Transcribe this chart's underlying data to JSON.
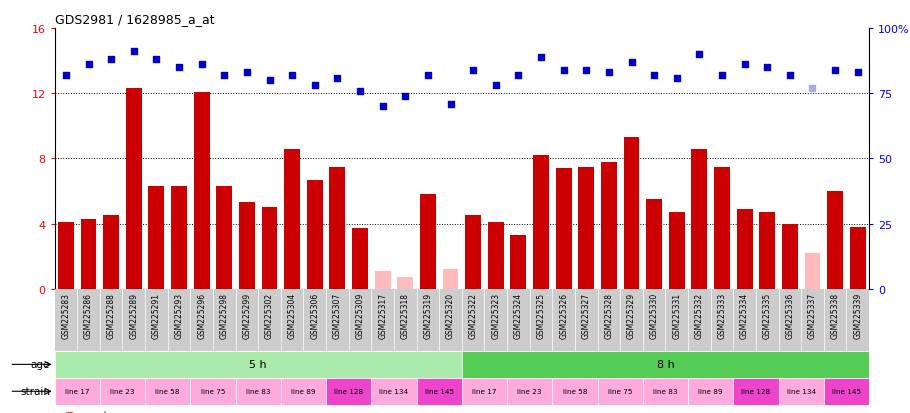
{
  "title": "GDS2981 / 1628985_a_at",
  "samples": [
    "GSM225283",
    "GSM225286",
    "GSM225288",
    "GSM225289",
    "GSM225291",
    "GSM225293",
    "GSM225296",
    "GSM225298",
    "GSM225299",
    "GSM225302",
    "GSM225304",
    "GSM225306",
    "GSM225307",
    "GSM225309",
    "GSM225317",
    "GSM225318",
    "GSM225319",
    "GSM225320",
    "GSM225322",
    "GSM225323",
    "GSM225324",
    "GSM225325",
    "GSM225326",
    "GSM225327",
    "GSM225328",
    "GSM225329",
    "GSM225330",
    "GSM225331",
    "GSM225332",
    "GSM225333",
    "GSM225334",
    "GSM225335",
    "GSM225336",
    "GSM225337",
    "GSM225338",
    "GSM225339"
  ],
  "count_values": [
    4.1,
    4.3,
    4.5,
    12.3,
    6.3,
    6.3,
    12.1,
    6.3,
    5.3,
    5.0,
    8.6,
    6.7,
    7.5,
    3.7,
    1.1,
    0.7,
    5.8,
    1.2,
    4.5,
    4.1,
    3.3,
    8.2,
    7.4,
    7.5,
    7.8,
    9.3,
    5.5,
    4.7,
    8.6,
    7.5,
    4.9,
    4.7,
    4.0,
    2.2,
    6.0,
    3.8
  ],
  "absent_mask": [
    false,
    false,
    false,
    false,
    false,
    false,
    false,
    false,
    false,
    false,
    false,
    false,
    false,
    false,
    true,
    true,
    false,
    true,
    false,
    false,
    false,
    false,
    false,
    false,
    false,
    false,
    false,
    false,
    false,
    false,
    false,
    false,
    false,
    true,
    false,
    false
  ],
  "percentile_rank": [
    82,
    86,
    88,
    91,
    88,
    85,
    86,
    82,
    83,
    80,
    82,
    78,
    81,
    76,
    70,
    74,
    82,
    71,
    84,
    78,
    82,
    89,
    84,
    84,
    83,
    87,
    82,
    81,
    90,
    82,
    86,
    85,
    82,
    77,
    84,
    83
  ],
  "absent_rank_mask": [
    false,
    false,
    false,
    false,
    false,
    false,
    false,
    false,
    false,
    false,
    false,
    false,
    false,
    false,
    false,
    false,
    false,
    false,
    false,
    false,
    false,
    false,
    false,
    false,
    false,
    false,
    false,
    false,
    false,
    false,
    false,
    false,
    false,
    true,
    false,
    false
  ],
  "ylim_left": [
    0,
    16
  ],
  "ylim_right": [
    0,
    100
  ],
  "yticks_left": [
    0,
    4,
    8,
    12,
    16
  ],
  "yticks_right": [
    0,
    25,
    50,
    75,
    100
  ],
  "bar_color_present": "#cc0000",
  "bar_color_absent": "#ffbbbb",
  "rank_color_present": "#0000cc",
  "rank_color_absent": "#aaaadd",
  "strains": [
    "line 17",
    "line 23",
    "line 58",
    "line 75",
    "line 83",
    "line 89",
    "line 128",
    "line 134",
    "line 145"
  ],
  "strain_color_light": "#ffaadd",
  "strain_color_dark": "#ee44cc",
  "strain_dark_indices": [
    6,
    8
  ],
  "age_color_5h": "#aaeaaa",
  "age_color_8h": "#55cc55",
  "dotted_line_color": "#666666",
  "hline_vals": [
    4,
    8,
    12
  ],
  "bg_color": "#ffffff"
}
